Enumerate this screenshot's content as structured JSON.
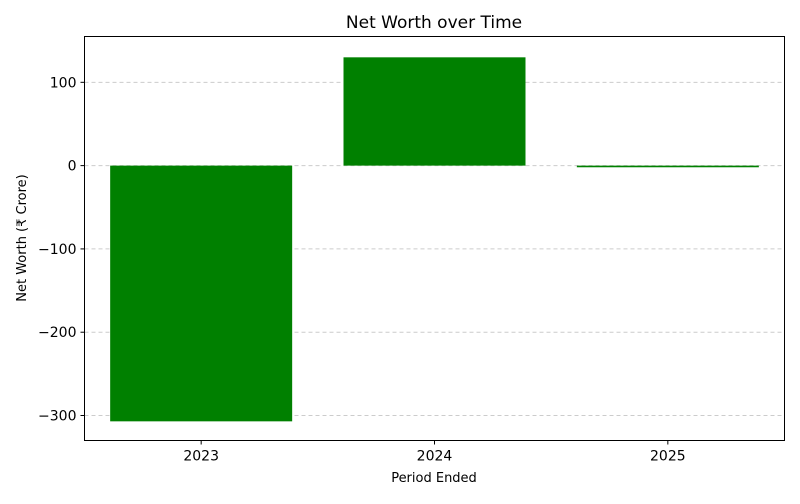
{
  "chart_data": {
    "type": "bar",
    "title": "Net Worth over Time",
    "xlabel": "Period Ended",
    "ylabel": "Net Worth (₹ Crore)",
    "categories": [
      "2023",
      "2024",
      "2025"
    ],
    "values": [
      -307,
      130,
      -2
    ],
    "ylim": [
      -330,
      155
    ],
    "yticks": [
      -300,
      -200,
      -100,
      0,
      100
    ],
    "ytick_labels": [
      "−300",
      "−200",
      "−100",
      "0",
      "100"
    ],
    "grid": "y-dashed",
    "bar_color": "#008000",
    "grid_color": "#cccccc"
  }
}
